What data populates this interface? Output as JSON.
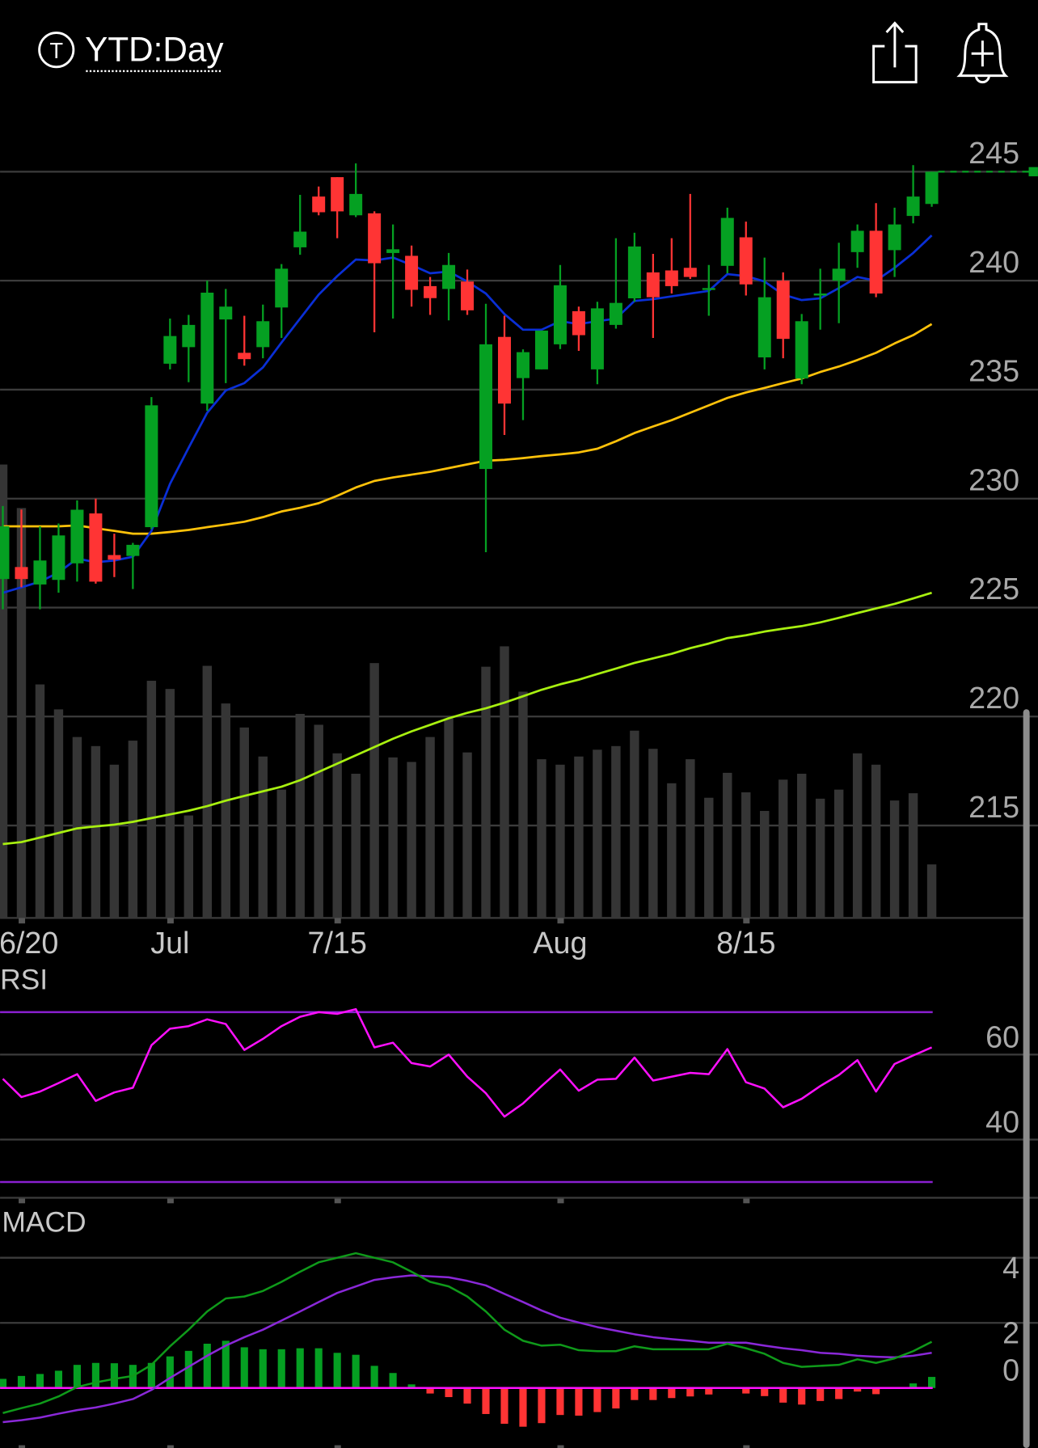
{
  "header": {
    "ticker_badge": "T",
    "period": "YTD:Day",
    "share_icon": "share-icon",
    "alert_icon": "bell-plus-icon"
  },
  "colors": {
    "up": "#05a022",
    "down": "#ff3434",
    "ma_short": "#0a2fd6",
    "ma_mid": "#ffc20a",
    "ma_long": "#a8f010",
    "volume": "#353535",
    "grid": "#3c3c3c",
    "rsi": "#ff10ff",
    "rsi_band": "#8a1fd0",
    "macd": "#0f9a1a",
    "macd_signal": "#8a28d8",
    "zero_line": "#ff10ff"
  },
  "chart_data": {
    "type": "candlestick",
    "title": "YTD:Day",
    "x_tick_labels": [
      {
        "index": 1,
        "label": "6/20"
      },
      {
        "index": 9,
        "label": "Jul"
      },
      {
        "index": 18,
        "label": "7/15"
      },
      {
        "index": 30,
        "label": "Aug"
      },
      {
        "index": 40,
        "label": "8/15"
      }
    ],
    "price_axis": {
      "ticks": [
        245,
        240,
        235,
        230,
        225,
        220,
        215
      ],
      "ylim": [
        210.76,
        247.37
      ]
    },
    "last_price": 245.0,
    "ohlc": [
      [
        226.31,
        229.66,
        224.92,
        228.73
      ],
      [
        226.86,
        229.5,
        225.93,
        226.31
      ],
      [
        226.06,
        228.73,
        224.92,
        227.16
      ],
      [
        226.27,
        228.86,
        225.68,
        228.31
      ],
      [
        227.03,
        229.92,
        226.19,
        229.49
      ],
      [
        229.32,
        230.0,
        226.1,
        226.19
      ],
      [
        227.41,
        228.39,
        226.4,
        227.2
      ],
      [
        227.37,
        227.97,
        225.85,
        227.88
      ],
      [
        228.69,
        234.66,
        228.6,
        234.28
      ],
      [
        236.19,
        238.26,
        235.93,
        237.46
      ],
      [
        236.95,
        238.43,
        235.34,
        237.97
      ],
      [
        234.36,
        240.0,
        234.03,
        239.45
      ],
      [
        238.22,
        239.62,
        235.3,
        238.81
      ],
      [
        236.69,
        238.39,
        236.1,
        236.4
      ],
      [
        236.95,
        238.9,
        236.44,
        238.14
      ],
      [
        238.77,
        240.76,
        237.37,
        240.55
      ],
      [
        241.53,
        243.94,
        241.19,
        242.25
      ],
      [
        243.86,
        244.32,
        243.0,
        243.14
      ],
      [
        244.75,
        244.75,
        241.95,
        243.18
      ],
      [
        243.0,
        245.38,
        242.92,
        243.98
      ],
      [
        243.09,
        243.18,
        237.63,
        240.8
      ],
      [
        241.27,
        242.58,
        238.26,
        241.44
      ],
      [
        241.14,
        241.61,
        238.81,
        239.58
      ],
      [
        239.75,
        240.17,
        238.43,
        239.2
      ],
      [
        239.62,
        241.27,
        238.18,
        240.72
      ],
      [
        239.96,
        240.51,
        238.43,
        238.64
      ],
      [
        231.36,
        238.94,
        227.54,
        237.08
      ],
      [
        237.42,
        238.39,
        232.92,
        234.36
      ],
      [
        235.53,
        236.85,
        233.6,
        236.72
      ],
      [
        235.93,
        237.71,
        235.93,
        237.71
      ],
      [
        237.08,
        240.72,
        236.86,
        239.79
      ],
      [
        238.6,
        238.81,
        236.78,
        237.5
      ],
      [
        235.93,
        239.03,
        235.25,
        238.73
      ],
      [
        237.97,
        241.95,
        237.8,
        238.98
      ],
      [
        239.19,
        242.2,
        239.03,
        241.57
      ],
      [
        240.38,
        241.23,
        237.37,
        239.24
      ],
      [
        240.47,
        241.95,
        239.41,
        239.75
      ],
      [
        240.59,
        243.98,
        240.08,
        240.17
      ],
      [
        239.58,
        240.72,
        238.39,
        239.66
      ],
      [
        240.68,
        243.35,
        240.34,
        242.88
      ],
      [
        241.99,
        242.71,
        239.32,
        239.83
      ],
      [
        236.48,
        241.06,
        235.93,
        239.24
      ],
      [
        240.0,
        240.38,
        236.44,
        237.33
      ],
      [
        235.51,
        238.47,
        235.25,
        238.14
      ],
      [
        239.32,
        240.55,
        237.75,
        239.41
      ],
      [
        240.0,
        241.74,
        238.05,
        240.55
      ],
      [
        241.31,
        242.58,
        240.59,
        242.29
      ],
      [
        242.29,
        243.56,
        239.24,
        239.41
      ],
      [
        241.4,
        243.35,
        240.17,
        242.58
      ],
      [
        242.97,
        245.3,
        242.63,
        243.86
      ],
      [
        243.52,
        245.0,
        243.39,
        245.0
      ]
    ],
    "volume_relative": [
      100,
      90.4,
      51.5,
      46,
      39.9,
      37.9,
      33.8,
      39.1,
      52.3,
      50.5,
      22.6,
      55.6,
      47.3,
      42,
      35.6,
      28.3,
      45,
      42.6,
      36.3,
      31.8,
      56.2,
      35.4,
      34.4,
      39.9,
      44,
      36.5,
      55.4,
      59.9,
      49.9,
      35,
      33.8,
      35.6,
      37.1,
      37.9,
      41.3,
      37.3,
      29.7,
      35,
      26.5,
      32,
      27.7,
      23.6,
      30.5,
      31.8,
      26.3,
      28.3,
      36.3,
      33.8,
      25.9,
      27.5,
      11.8
    ],
    "ma_short": [
      225.68,
      225.93,
      226.19,
      226.61,
      227.25,
      227.08,
      227.16,
      227.33,
      228.52,
      230.68,
      232.33,
      233.94,
      234.96,
      235.3,
      236.02,
      237.16,
      238.26,
      239.36,
      240.21,
      240.97,
      240.93,
      241.06,
      240.72,
      240.34,
      240.42,
      239.96,
      239.41,
      238.47,
      237.75,
      237.75,
      238.14,
      238.01,
      238.14,
      238.26,
      239.07,
      239.15,
      239.28,
      239.41,
      239.53,
      240.3,
      240.21,
      239.96,
      239.36,
      239.11,
      239.19,
      239.66,
      240.17,
      240.0,
      240.59,
      241.27,
      242.08
    ],
    "ma_mid": [
      228.73,
      228.73,
      228.73,
      228.73,
      228.77,
      228.64,
      228.52,
      228.39,
      228.39,
      228.47,
      228.56,
      228.69,
      228.81,
      228.94,
      229.15,
      229.41,
      229.58,
      229.79,
      230.13,
      230.51,
      230.81,
      230.97,
      231.1,
      231.23,
      231.4,
      231.57,
      231.74,
      231.78,
      231.86,
      231.95,
      232.03,
      232.12,
      232.29,
      232.63,
      233.01,
      233.31,
      233.6,
      233.94,
      234.28,
      234.62,
      234.87,
      235.08,
      235.3,
      235.51,
      235.81,
      236.06,
      236.36,
      236.69,
      237.12,
      237.5,
      238.01
    ],
    "ma_long": [
      214.15,
      214.24,
      214.45,
      214.66,
      214.87,
      214.96,
      215.04,
      215.17,
      215.34,
      215.51,
      215.68,
      215.89,
      216.14,
      216.36,
      216.57,
      216.78,
      217.08,
      217.46,
      217.84,
      218.22,
      218.6,
      218.98,
      219.32,
      219.62,
      219.92,
      220.17,
      220.38,
      220.64,
      220.93,
      221.23,
      221.48,
      221.69,
      221.95,
      222.2,
      222.46,
      222.67,
      222.88,
      223.14,
      223.35,
      223.6,
      223.73,
      223.9,
      224.03,
      224.15,
      224.32,
      224.53,
      224.75,
      224.96,
      225.17,
      225.42,
      225.68
    ],
    "rsi": {
      "label": "RSI",
      "ticks": [
        60,
        40
      ],
      "bands": [
        70,
        30
      ],
      "ylim": [
        26.3,
        82
      ],
      "values": [
        54.3,
        50.0,
        51.3,
        53.3,
        55.4,
        49.1,
        51.1,
        52.2,
        62.2,
        66.1,
        66.7,
        68.3,
        67.2,
        61.1,
        63.7,
        66.7,
        68.9,
        70.0,
        69.6,
        70.7,
        61.7,
        62.8,
        58.0,
        57.2,
        60.0,
        54.8,
        50.9,
        45.4,
        48.5,
        52.6,
        56.5,
        51.5,
        54.1,
        54.3,
        59.3,
        53.9,
        54.8,
        55.7,
        55.4,
        61.3,
        53.5,
        52.0,
        47.6,
        49.6,
        52.6,
        55.2,
        58.7,
        51.3,
        57.8,
        59.8,
        61.7
      ]
    },
    "macd": {
      "label": "MACD",
      "ticks": [
        4,
        2,
        0
      ],
      "ylim": [
        -1.76,
        5.5
      ],
      "macd": [
        -0.77,
        -0.62,
        -0.48,
        -0.26,
        0.03,
        0.17,
        0.28,
        0.37,
        0.71,
        1.28,
        1.79,
        2.35,
        2.75,
        2.81,
        2.98,
        3.26,
        3.57,
        3.86,
        4.0,
        4.14,
        4.0,
        3.86,
        3.57,
        3.26,
        3.12,
        2.81,
        2.35,
        1.79,
        1.45,
        1.3,
        1.33,
        1.16,
        1.13,
        1.13,
        1.28,
        1.19,
        1.19,
        1.19,
        1.19,
        1.36,
        1.22,
        1.05,
        0.77,
        0.65,
        0.68,
        0.71,
        0.88,
        0.77,
        0.91,
        1.13,
        1.42
      ],
      "signal": [
        -1.05,
        -0.99,
        -0.91,
        -0.79,
        -0.68,
        -0.6,
        -0.48,
        -0.34,
        -0.06,
        0.31,
        0.65,
        0.99,
        1.3,
        1.56,
        1.79,
        2.07,
        2.35,
        2.64,
        2.92,
        3.12,
        3.32,
        3.4,
        3.46,
        3.43,
        3.4,
        3.29,
        3.15,
        2.89,
        2.64,
        2.38,
        2.16,
        2.01,
        1.87,
        1.76,
        1.65,
        1.56,
        1.5,
        1.45,
        1.39,
        1.39,
        1.39,
        1.3,
        1.22,
        1.16,
        1.08,
        1.05,
        0.99,
        0.96,
        0.94,
        0.99,
        1.08
      ]
    }
  }
}
